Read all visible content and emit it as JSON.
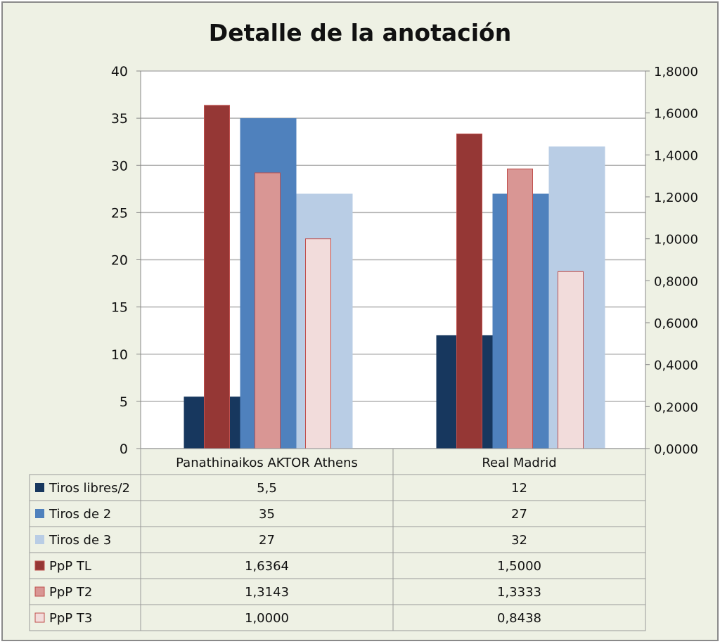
{
  "chart_data": {
    "type": "bar",
    "title": "Detalle de la anotación",
    "categories": [
      "Panathinaikos AKTOR Athens",
      "Real Madrid"
    ],
    "primary_axis": {
      "ylim": [
        0,
        40
      ],
      "ticks": [
        "0",
        "5",
        "10",
        "15",
        "20",
        "25",
        "30",
        "35",
        "40"
      ],
      "tick_values": [
        0,
        5,
        10,
        15,
        20,
        25,
        30,
        35,
        40
      ]
    },
    "secondary_axis": {
      "ylim": [
        0,
        1.8
      ],
      "ticks": [
        "0,0000",
        "0,2000",
        "0,4000",
        "0,6000",
        "0,8000",
        "1,0000",
        "1,2000",
        "1,4000",
        "1,6000",
        "1,8000"
      ],
      "tick_values": [
        0,
        0.2,
        0.4,
        0.6,
        0.8,
        1.0,
        1.2,
        1.4,
        1.6,
        1.8
      ]
    },
    "grid": true,
    "series": [
      {
        "name": "Tiros libres/2",
        "axis": "primary",
        "color": "#17375e",
        "values": [
          5.5,
          12
        ],
        "labels": [
          "5,5",
          "12"
        ]
      },
      {
        "name": "Tiros de 2",
        "axis": "primary",
        "color": "#4f81bd",
        "values": [
          35,
          27
        ],
        "labels": [
          "35",
          "27"
        ]
      },
      {
        "name": "Tiros de 3",
        "axis": "primary",
        "color": "#b9cde5",
        "values": [
          27,
          32
        ],
        "labels": [
          "27",
          "32"
        ]
      },
      {
        "name": "PpP TL",
        "axis": "secondary",
        "color": "#953735",
        "values": [
          1.6364,
          1.5
        ],
        "labels": [
          "1,6364",
          "1,5000"
        ]
      },
      {
        "name": "PpP T2",
        "axis": "secondary",
        "color": "#d99694",
        "values": [
          1.3143,
          1.3333
        ],
        "labels": [
          "1,3143",
          "1,3333"
        ]
      },
      {
        "name": "PpP T3",
        "axis": "secondary",
        "color": "#f2dcdb",
        "values": [
          1.0,
          0.8438
        ],
        "labels": [
          "1,0000",
          "0,8438"
        ]
      }
    ]
  }
}
